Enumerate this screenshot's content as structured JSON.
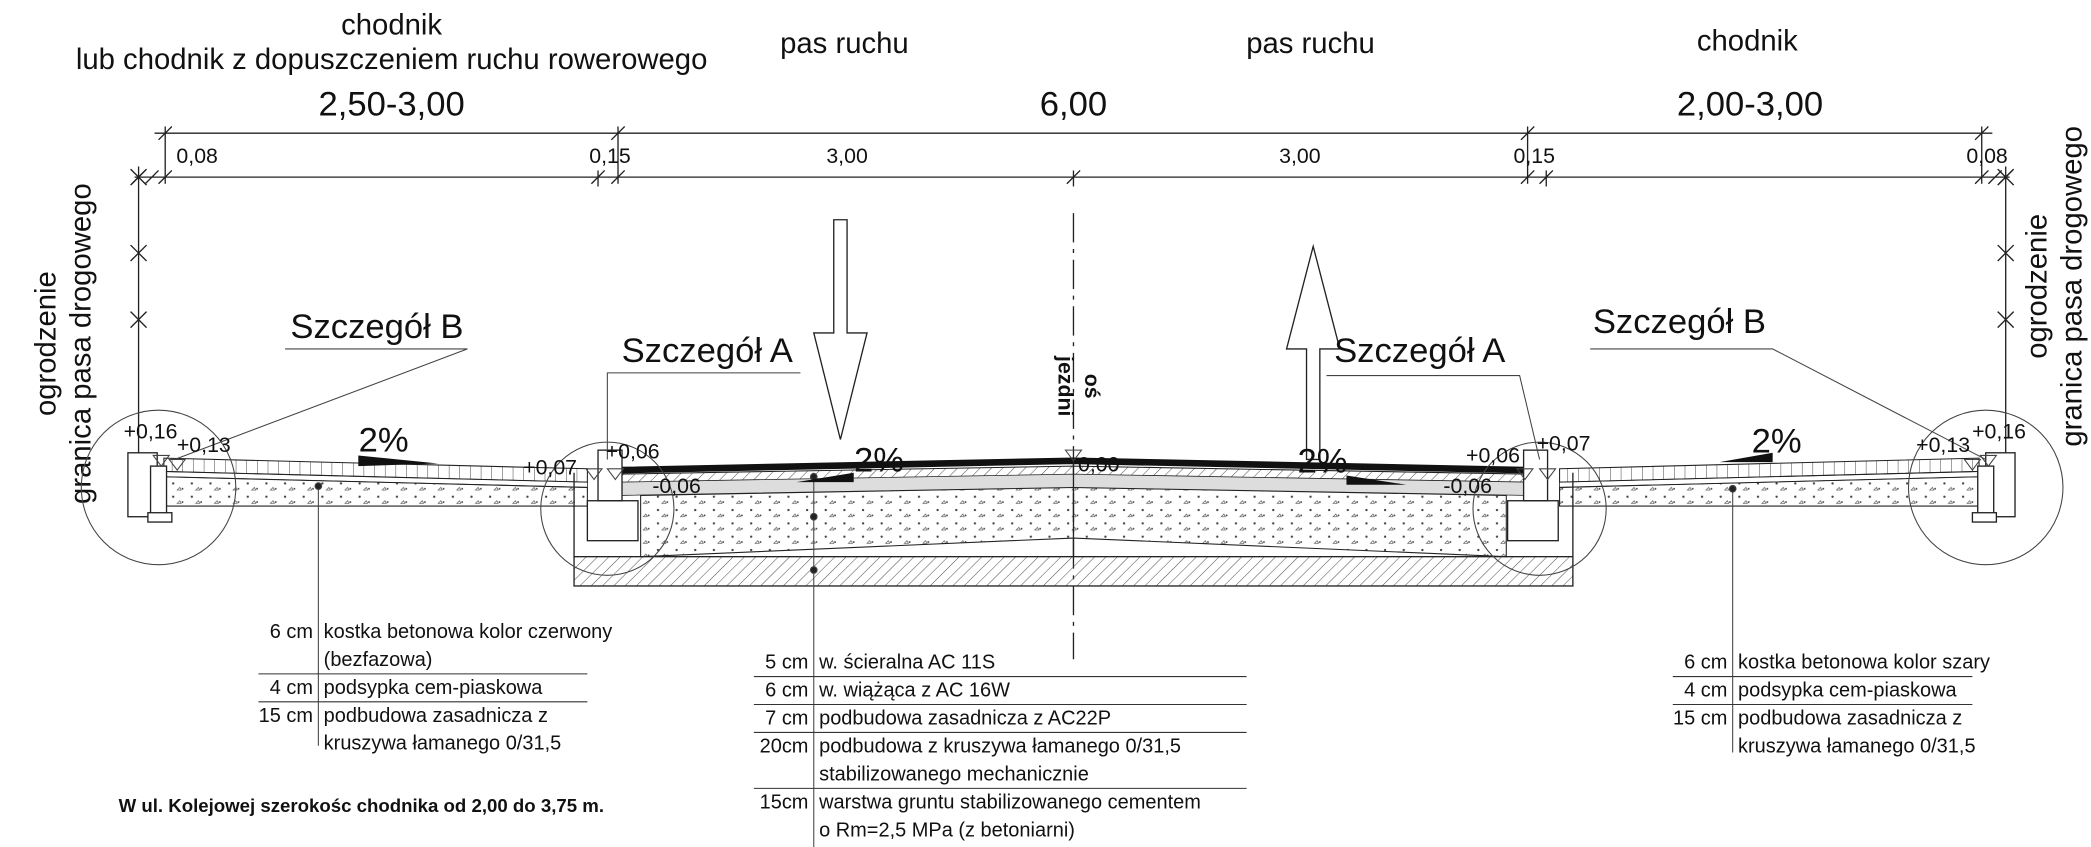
{
  "top_labels": [
    "chodnik",
    "lub chodnik z dopuszczeniem ruchu rowerowego",
    "pas ruchu",
    "pas ruchu",
    "chodnik"
  ],
  "widths": [
    "2,50-3,00",
    "6,00",
    "2,00-3,00"
  ],
  "dimensions": [
    "0,08",
    "0,15",
    "3,00",
    "3,00",
    "0,15",
    "0,08"
  ],
  "boundary_label": [
    "ogrodzenie",
    "granica pasa drogowego"
  ],
  "details": [
    "Szczegół B",
    "Szczegół A",
    "Szczegół A",
    "Szczegół B"
  ],
  "axis_label": [
    "oś",
    "jezdni"
  ],
  "elevations": [
    "+0,16",
    "+0,13",
    "+0,07",
    "+0,06",
    "-0,06",
    "0,00",
    "+0,06",
    "+0,07",
    "-0,06",
    "+0,13",
    "+0,16"
  ],
  "slopes": [
    "2%",
    "2%",
    "2%",
    "2%"
  ],
  "layers_left": [
    {
      "thickness": "6 cm",
      "lines": [
        "kostka betonowa kolor czerwony",
        "(bezfazowa)"
      ]
    },
    {
      "thickness": "4 cm",
      "lines": [
        "podsypka cem-piaskowa"
      ]
    },
    {
      "thickness": "15 cm",
      "lines": [
        "podbudowa zasadnicza z",
        "kruszywa łamanego 0/31,5"
      ]
    }
  ],
  "layers_road": [
    {
      "thickness": "5 cm",
      "lines": [
        "w. ścieralna AC 11S"
      ]
    },
    {
      "thickness": "6 cm",
      "lines": [
        "w. wiążąca z AC 16W"
      ]
    },
    {
      "thickness": "7 cm",
      "lines": [
        "podbudowa zasadnicza z AC22P"
      ]
    },
    {
      "thickness": "20cm",
      "lines": [
        "podbudowa  z kruszywa łamanego 0/31,5",
        "stabilizowanego mechanicznie"
      ]
    },
    {
      "thickness": "15cm",
      "lines": [
        "warstwa gruntu stabilizowanego cementem",
        "o Rm=2,5 MPa (z betoniarni)"
      ]
    }
  ],
  "layers_right": [
    {
      "thickness": "6 cm",
      "lines": [
        "kostka betonowa kolor szary"
      ]
    },
    {
      "thickness": "4 cm",
      "lines": [
        "podsypka cem-piaskowa"
      ]
    },
    {
      "thickness": "15 cm",
      "lines": [
        "podbudowa zasadnicza z",
        "kruszywa łamanego 0/31,5"
      ]
    }
  ],
  "note": "W ul. Kolejowej szerokośc chodnika od 2,00 do 3,75 m."
}
